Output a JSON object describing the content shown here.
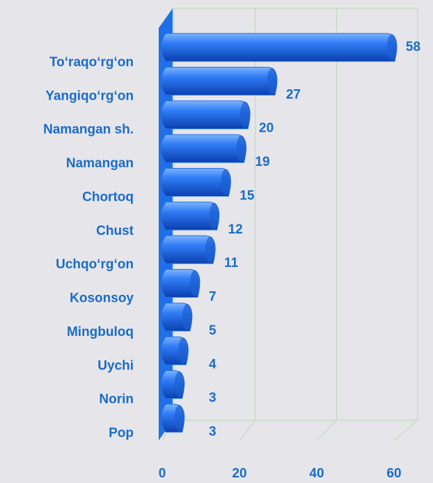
{
  "chart_data": {
    "type": "bar",
    "orientation": "horizontal",
    "categories": [
      "To‘raqo‘rg‘on",
      "Yangiqo‘rg‘on",
      "Namangan sh.",
      "Namangan",
      "Chortoq",
      "Chust",
      "Uchqo‘rg‘on",
      "Kosonsoy",
      "Mingbuloq",
      "Uychi",
      "Norin",
      "Pop"
    ],
    "values": [
      58,
      27,
      20,
      19,
      15,
      12,
      11,
      7,
      5,
      4,
      3,
      3
    ],
    "color": "#1f6fe8",
    "xlim": [
      0,
      60
    ],
    "xticks": [
      0,
      20,
      40,
      60
    ],
    "grid": true
  }
}
